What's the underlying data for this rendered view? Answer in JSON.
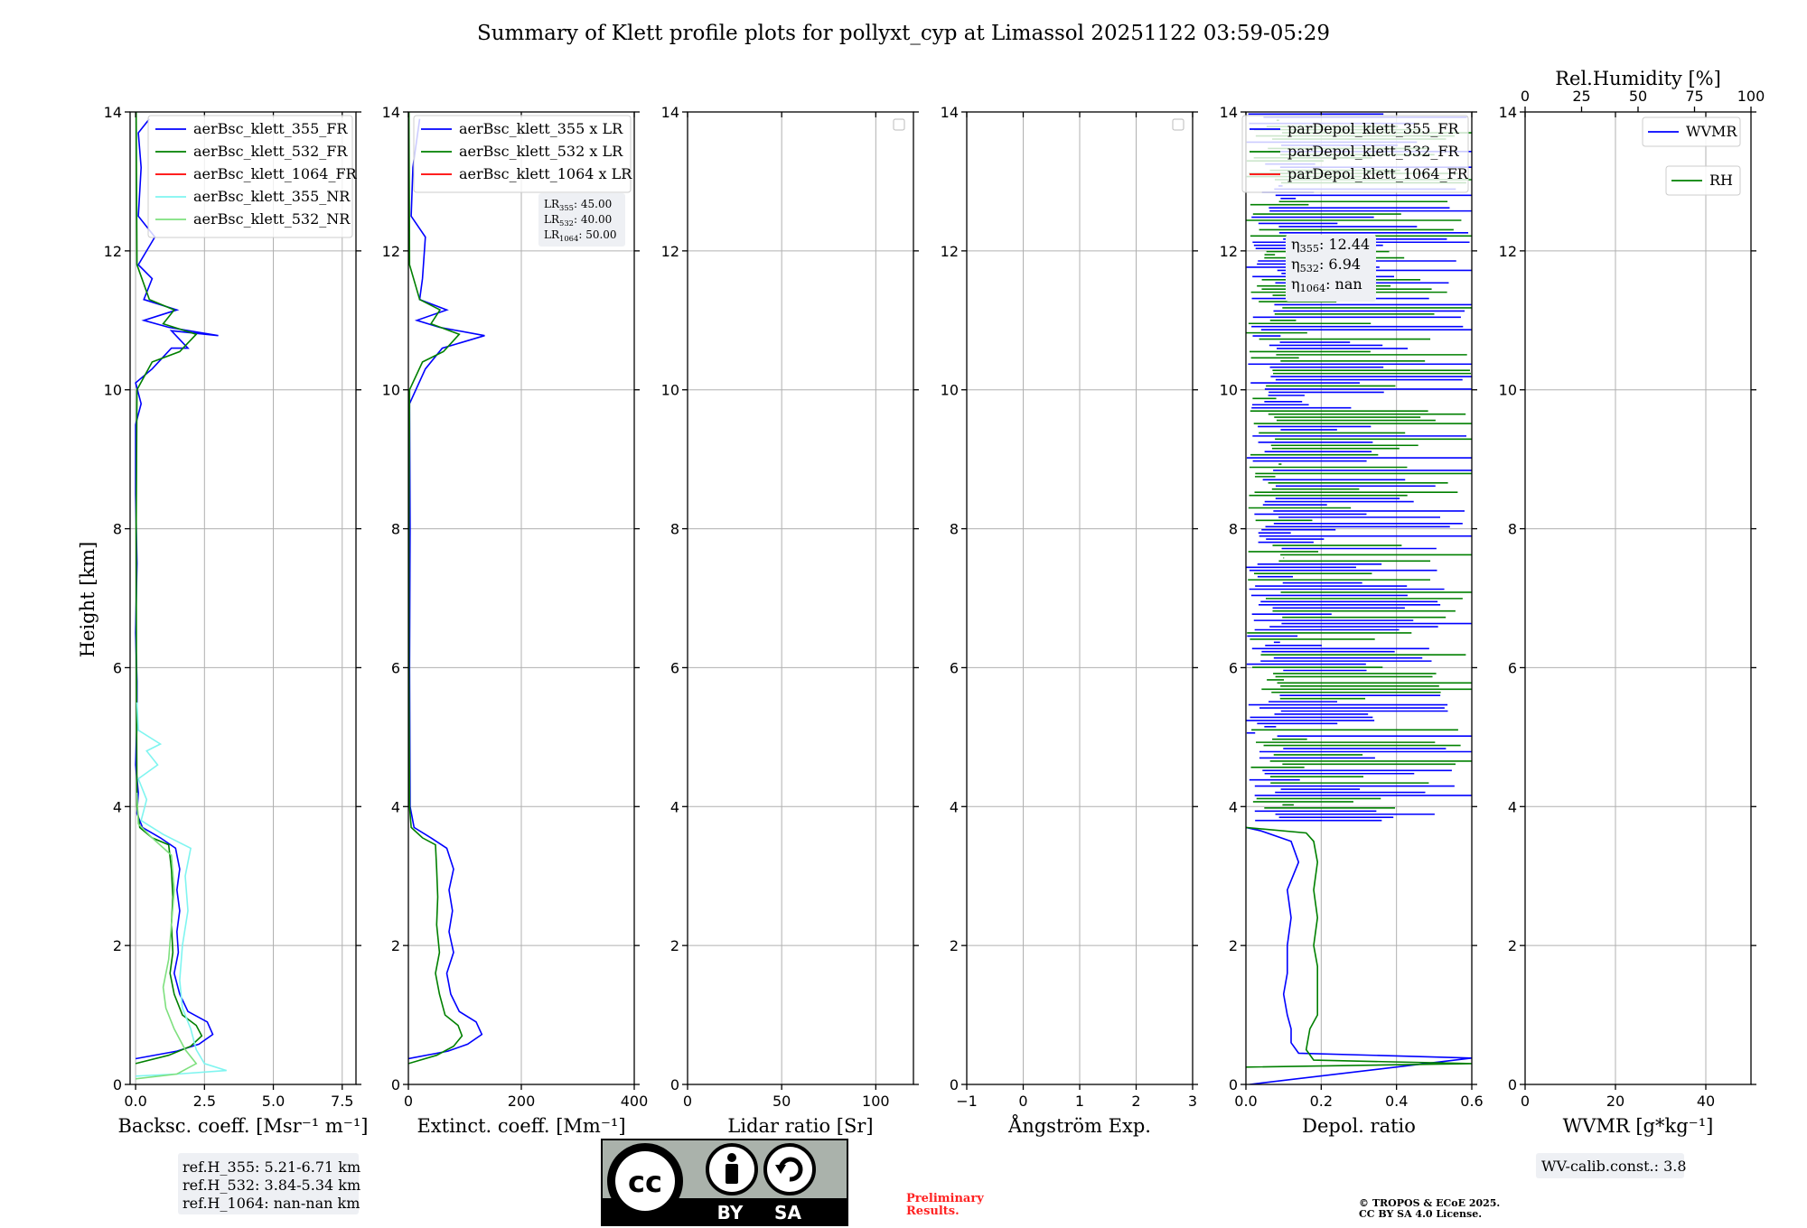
{
  "title": "Summary of Klett profile plots for pollyxt_cyp at Limassol 20251122 03:59-05:29",
  "colors": {
    "blue": "#0000ff",
    "green": "#008000",
    "red": "#ff0000",
    "cyan": "#7ff5f0",
    "lightgreen": "#7ee07e"
  },
  "chart_data": [
    {
      "type": "line",
      "id": "backscatter",
      "xlabel": "Backsc. coeff. [Msr⁻¹ m⁻¹]",
      "ylabel": "Height [km]",
      "xlim": [
        -0.2,
        8.0
      ],
      "ylim": [
        0,
        14
      ],
      "xticks": [
        "0.0",
        "2.5",
        "5.0",
        "7.5"
      ],
      "xtick_values": [
        0,
        2.5,
        5,
        7.5
      ],
      "yticks": [
        "0",
        "2",
        "4",
        "6",
        "8",
        "10",
        "12",
        "14"
      ],
      "legend_position": "top-right",
      "series": [
        {
          "name": "aerBsc_klett_355_FR",
          "color": "#0000ff",
          "points": [
            [
              0,
              0.37
            ],
            [
              1.5,
              0.48
            ],
            [
              2.3,
              0.58
            ],
            [
              2.8,
              0.72
            ],
            [
              2.6,
              0.9
            ],
            [
              1.9,
              1.05
            ],
            [
              1.6,
              1.3
            ],
            [
              1.4,
              1.6
            ],
            [
              1.55,
              1.9
            ],
            [
              1.5,
              2.2
            ],
            [
              1.6,
              2.5
            ],
            [
              1.5,
              2.8
            ],
            [
              1.6,
              3.1
            ],
            [
              1.45,
              3.4
            ],
            [
              0.9,
              3.55
            ],
            [
              0.25,
              3.7
            ],
            [
              0.05,
              3.9
            ],
            [
              0.1,
              4.2
            ],
            [
              0.0,
              4.6
            ],
            [
              0.05,
              5.2
            ],
            [
              0.05,
              5.8
            ],
            [
              0.0,
              6.5
            ],
            [
              0.05,
              7.5
            ],
            [
              0.0,
              8.5
            ],
            [
              0.0,
              9.5
            ],
            [
              0.2,
              9.8
            ],
            [
              0.0,
              10.1
            ],
            [
              0.6,
              10.3
            ],
            [
              1.3,
              10.6
            ],
            [
              1.9,
              10.6
            ],
            [
              1.3,
              10.85
            ],
            [
              3.0,
              10.78
            ],
            [
              1.2,
              10.9
            ],
            [
              0.3,
              11.0
            ],
            [
              1.5,
              11.15
            ],
            [
              0.3,
              11.3
            ],
            [
              0.6,
              11.6
            ],
            [
              0.1,
              11.8
            ],
            [
              0.7,
              12.2
            ],
            [
              0.1,
              12.5
            ],
            [
              0.2,
              13.2
            ],
            [
              0.1,
              13.7
            ],
            [
              0.5,
              13.9
            ]
          ]
        },
        {
          "name": "aerBsc_klett_532_FR",
          "color": "#008000",
          "points": [
            [
              0,
              0.3
            ],
            [
              1.2,
              0.42
            ],
            [
              2.0,
              0.55
            ],
            [
              2.4,
              0.7
            ],
            [
              2.2,
              0.85
            ],
            [
              1.7,
              1.0
            ],
            [
              1.4,
              1.3
            ],
            [
              1.25,
              1.6
            ],
            [
              1.35,
              1.9
            ],
            [
              1.3,
              2.3
            ],
            [
              1.35,
              2.7
            ],
            [
              1.3,
              3.1
            ],
            [
              1.2,
              3.45
            ],
            [
              0.6,
              3.55
            ],
            [
              0.15,
              3.7
            ],
            [
              0.05,
              4.0
            ],
            [
              0.03,
              6
            ],
            [
              0.02,
              8
            ],
            [
              0.05,
              10
            ],
            [
              0.6,
              10.4
            ],
            [
              1.6,
              10.55
            ],
            [
              2.2,
              10.8
            ],
            [
              1.0,
              10.95
            ],
            [
              1.4,
              11.15
            ],
            [
              0.5,
              11.3
            ],
            [
              0.05,
              11.8
            ],
            [
              0.02,
              14
            ]
          ]
        },
        {
          "name": "aerBsc_klett_1064_FR",
          "color": "#ff0000",
          "points": []
        },
        {
          "name": "aerBsc_klett_355_NR",
          "color": "#7ff5f0",
          "points": [
            [
              0,
              0.12
            ],
            [
              1.5,
              0.15
            ],
            [
              3.3,
              0.2
            ],
            [
              2.5,
              0.3
            ],
            [
              2.2,
              0.5
            ],
            [
              2.0,
              0.8
            ],
            [
              1.7,
              1.1
            ],
            [
              1.6,
              1.5
            ],
            [
              1.7,
              2.0
            ],
            [
              1.9,
              2.5
            ],
            [
              1.8,
              3.0
            ],
            [
              2.0,
              3.4
            ],
            [
              1.0,
              3.6
            ],
            [
              0.2,
              3.8
            ],
            [
              0.4,
              4.1
            ],
            [
              0.1,
              4.4
            ],
            [
              0.8,
              4.6
            ],
            [
              0.4,
              4.8
            ],
            [
              0.9,
              4.9
            ],
            [
              0.1,
              5.1
            ],
            [
              0.05,
              5.5
            ]
          ]
        },
        {
          "name": "aerBsc_klett_532_NR",
          "color": "#7ee07e",
          "points": [
            [
              0,
              0.08
            ],
            [
              1.5,
              0.15
            ],
            [
              2.2,
              0.3
            ],
            [
              1.8,
              0.5
            ],
            [
              1.4,
              0.8
            ],
            [
              1.1,
              1.1
            ],
            [
              1.0,
              1.4
            ],
            [
              1.2,
              1.8
            ],
            [
              1.3,
              2.3
            ],
            [
              1.4,
              2.8
            ],
            [
              1.3,
              3.3
            ],
            [
              0.6,
              3.55
            ],
            [
              0.1,
              3.75
            ],
            [
              0.05,
              4.2
            ]
          ]
        }
      ]
    },
    {
      "type": "line",
      "id": "extinction",
      "xlabel": "Extinct. coeff. [Mm⁻¹]",
      "xlim": [
        0,
        400
      ],
      "ylim": [
        0,
        14
      ],
      "xticks": [
        "0",
        "200",
        "400"
      ],
      "xtick_values": [
        0,
        200,
        400
      ],
      "yticks": [
        "0",
        "2",
        "4",
        "6",
        "8",
        "10",
        "12",
        "14"
      ],
      "legend_position": "top-right",
      "series": [
        {
          "name": "aerBsc_klett_355 x LR",
          "color": "#0000ff",
          "points": [
            [
              0,
              0.37
            ],
            [
              70,
              0.48
            ],
            [
              105,
              0.58
            ],
            [
              130,
              0.72
            ],
            [
              120,
              0.9
            ],
            [
              90,
              1.05
            ],
            [
              75,
              1.3
            ],
            [
              68,
              1.6
            ],
            [
              80,
              1.9
            ],
            [
              72,
              2.2
            ],
            [
              78,
              2.5
            ],
            [
              72,
              2.8
            ],
            [
              80,
              3.1
            ],
            [
              68,
              3.4
            ],
            [
              40,
              3.55
            ],
            [
              10,
              3.7
            ],
            [
              3,
              4.0
            ],
            [
              2,
              6
            ],
            [
              3,
              8
            ],
            [
              2,
              9.8
            ],
            [
              30,
              10.3
            ],
            [
              60,
              10.6
            ],
            [
              135,
              10.78
            ],
            [
              55,
              10.9
            ],
            [
              15,
              11.0
            ],
            [
              68,
              11.15
            ],
            [
              20,
              11.3
            ],
            [
              25,
              11.6
            ],
            [
              30,
              12.2
            ],
            [
              5,
              12.5
            ],
            [
              8,
              13.2
            ],
            [
              20,
              13.9
            ]
          ]
        },
        {
          "name": "aerBsc_klett_532 x LR",
          "color": "#008000",
          "points": [
            [
              0,
              0.3
            ],
            [
              50,
              0.42
            ],
            [
              80,
              0.55
            ],
            [
              95,
              0.7
            ],
            [
              88,
              0.85
            ],
            [
              65,
              1.0
            ],
            [
              55,
              1.3
            ],
            [
              48,
              1.6
            ],
            [
              55,
              1.9
            ],
            [
              50,
              2.3
            ],
            [
              52,
              2.7
            ],
            [
              50,
              3.1
            ],
            [
              48,
              3.45
            ],
            [
              25,
              3.55
            ],
            [
              5,
              3.7
            ],
            [
              2,
              4.0
            ],
            [
              1,
              6
            ],
            [
              1,
              8
            ],
            [
              2,
              10
            ],
            [
              25,
              10.4
            ],
            [
              62,
              10.55
            ],
            [
              90,
              10.8
            ],
            [
              40,
              10.95
            ],
            [
              56,
              11.15
            ],
            [
              20,
              11.3
            ],
            [
              2,
              11.8
            ],
            [
              1,
              14
            ]
          ]
        },
        {
          "name": "aerBsc_klett_1064 x LR",
          "color": "#ff0000",
          "points": []
        }
      ],
      "annotation": {
        "lines": [
          {
            "base": "LR",
            "sub": "355",
            "value": ": 45.00"
          },
          {
            "base": "LR",
            "sub": "532",
            "value": ": 40.00"
          },
          {
            "base": "LR",
            "sub": "1064",
            "value": ": 50.00"
          }
        ]
      }
    },
    {
      "type": "line",
      "id": "lidar-ratio",
      "xlabel": "Lidar ratio [Sr]",
      "xlim": [
        0,
        120
      ],
      "ylim": [
        0,
        14
      ],
      "xticks": [
        "0",
        "50",
        "100"
      ],
      "xtick_values": [
        0,
        50,
        100
      ],
      "yticks": [
        "0",
        "2",
        "4",
        "6",
        "8",
        "10",
        "12",
        "14"
      ],
      "legend_position": "top-right",
      "series": []
    },
    {
      "type": "line",
      "id": "angstrom",
      "xlabel": "Ångström Exp.",
      "xlim": [
        -1,
        3
      ],
      "ylim": [
        0,
        14
      ],
      "xticks": [
        "−1",
        "0",
        "1",
        "2",
        "3"
      ],
      "xtick_values": [
        -1,
        0,
        1,
        2,
        3
      ],
      "yticks": [
        "0",
        "2",
        "4",
        "6",
        "8",
        "10",
        "12",
        "14"
      ],
      "legend_position": "top-right",
      "series": []
    },
    {
      "type": "line",
      "id": "depol",
      "xlabel": "Depol. ratio",
      "xlim": [
        0,
        0.6
      ],
      "ylim": [
        0,
        14
      ],
      "xticks": [
        "0.0",
        "0.2",
        "0.4",
        "0.6"
      ],
      "xtick_values": [
        0,
        0.2,
        0.4,
        0.6
      ],
      "yticks": [
        "0",
        "2",
        "4",
        "6",
        "8",
        "10",
        "12",
        "14"
      ],
      "legend_position": "top-right",
      "series": [
        {
          "name": "parDepol_klett_355_FR",
          "color": "#0000ff",
          "points": [
            [
              0.01,
              0.0
            ],
            [
              0.6,
              0.38
            ],
            [
              0.14,
              0.45
            ],
            [
              0.12,
              0.6
            ],
            [
              0.12,
              0.8
            ],
            [
              0.11,
              1.0
            ],
            [
              0.1,
              1.3
            ],
            [
              0.11,
              1.6
            ],
            [
              0.11,
              2.0
            ],
            [
              0.12,
              2.4
            ],
            [
              0.11,
              2.8
            ],
            [
              0.14,
              3.2
            ],
            [
              0.12,
              3.5
            ],
            [
              0.04,
              3.65
            ],
            [
              0.0,
              3.7
            ]
          ]
        },
        {
          "name": "parDepol_klett_532_FR",
          "color": "#008000",
          "points": [
            [
              0.0,
              0.25
            ],
            [
              0.6,
              0.3
            ],
            [
              0.18,
              0.35
            ],
            [
              0.16,
              0.5
            ],
            [
              0.17,
              0.8
            ],
            [
              0.19,
              1.0
            ],
            [
              0.19,
              1.3
            ],
            [
              0.19,
              1.7
            ],
            [
              0.18,
              2.0
            ],
            [
              0.19,
              2.4
            ],
            [
              0.18,
              2.8
            ],
            [
              0.19,
              3.2
            ],
            [
              0.18,
              3.5
            ],
            [
              0.16,
              3.62
            ],
            [
              0.0,
              3.7
            ]
          ]
        },
        {
          "name": "parDepol_klett_1064_FR",
          "color": "#ff0000",
          "points": []
        }
      ],
      "annotation": {
        "lines": [
          {
            "base": "η",
            "sub": "355",
            "value": ": 12.44"
          },
          {
            "base": "η",
            "sub": "532",
            "value": ": 6.94"
          },
          {
            "base": "η",
            "sub": "1064",
            "value": ": nan"
          }
        ]
      }
    },
    {
      "type": "line",
      "id": "wvmr",
      "xlabel": "WVMR [g*kg⁻¹]",
      "xlim": [
        0,
        50
      ],
      "ylim": [
        0,
        14
      ],
      "xticks": [
        "0",
        "20",
        "40"
      ],
      "xtick_values": [
        0,
        20,
        40
      ],
      "yticks": [
        "0",
        "2",
        "4",
        "6",
        "8",
        "10",
        "12",
        "14"
      ],
      "top_xlabel": "Rel.Humidity [%]",
      "top_xlim": [
        0,
        100
      ],
      "top_xticks": [
        "0",
        "25",
        "50",
        "75",
        "100"
      ],
      "top_xtick_values": [
        0,
        25,
        50,
        75,
        100
      ],
      "legend_position": "top-right",
      "series": [
        {
          "name": "WVMR",
          "color": "#0000ff",
          "points": []
        },
        {
          "name": "RH",
          "color": "#008000",
          "points": []
        }
      ]
    }
  ],
  "ref_heights": [
    "ref.H_355: 5.21-6.71 km",
    "ref.H_532: 3.84-5.34 km",
    "ref.H_1064: nan-nan km"
  ],
  "license_badge": {
    "by": "BY",
    "sa": "SA"
  },
  "preliminary": [
    "Preliminary",
    "Results."
  ],
  "copyright": [
    "© TROPOS & ECoE 2025.",
    "CC BY SA 4.0 License."
  ],
  "wv_calib": "WV-calib.const.: 3.8"
}
